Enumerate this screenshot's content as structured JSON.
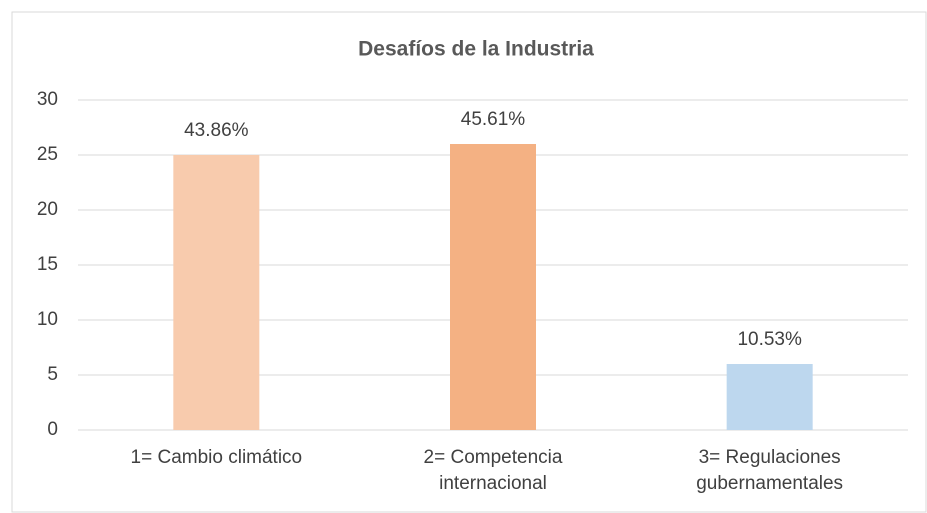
{
  "chart_data": {
    "type": "bar",
    "title": "Desafíos de la Industria",
    "categories": [
      "1= Cambio climático",
      "2= Competencia internacional",
      "3= Regulaciones gubernamentales"
    ],
    "values": [
      25,
      26,
      6
    ],
    "percent_labels": [
      "43.86%",
      "45.61%",
      "10.53%"
    ],
    "colors": [
      "#f8cbad",
      "#f4b183",
      "#bdd7ee"
    ],
    "ylim": [
      0,
      30
    ],
    "yticks": [
      0,
      5,
      10,
      15,
      20,
      25,
      30
    ],
    "grid": true
  }
}
